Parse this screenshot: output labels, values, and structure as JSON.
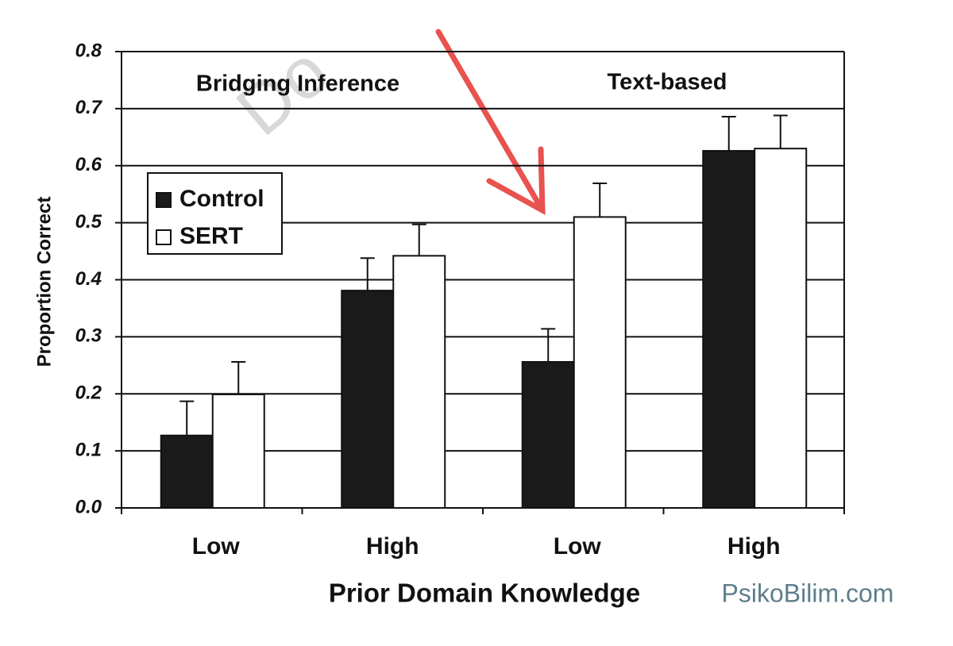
{
  "chart_data": {
    "type": "bar",
    "watermark": "Do",
    "annotations": [
      "Bridging Inference",
      "Text-based"
    ],
    "source": "PsikoBilim.com",
    "xlabel": "Prior Domain Knowledge",
    "ylabel": "Proportion Correct",
    "categories": [
      "Low",
      "High",
      "Low",
      "High"
    ],
    "series": [
      {
        "name": "Control",
        "color": "#1a1a1a",
        "values": [
          0.127,
          0.381,
          0.256,
          0.626
        ],
        "errors": [
          0.06,
          0.057,
          0.058,
          0.06
        ]
      },
      {
        "name": "SERT",
        "color": "#ffffff",
        "values": [
          0.199,
          0.442,
          0.51,
          0.63
        ],
        "errors": [
          0.057,
          0.055,
          0.059,
          0.058
        ]
      }
    ],
    "ylim": [
      0,
      0.8
    ],
    "yticks": [
      {
        "value": 0,
        "label": "0.0"
      },
      0.1,
      0.2,
      0.3,
      0.4,
      0.5,
      0.6,
      0.7,
      0.8
    ],
    "grid": true
  }
}
